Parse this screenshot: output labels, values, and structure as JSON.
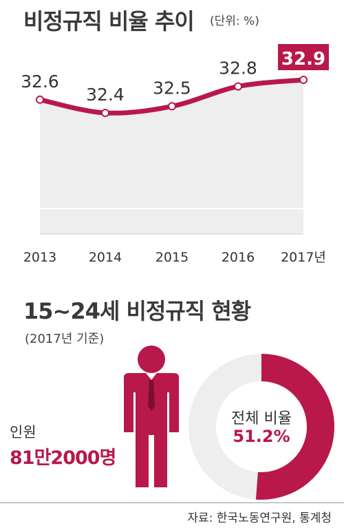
{
  "header": {
    "title": "비정규직 비율 추이",
    "unit": "(단위: %)"
  },
  "chart_data": {
    "type": "area",
    "categories": [
      "2013",
      "2014",
      "2015",
      "2016",
      "2017년"
    ],
    "values": [
      32.6,
      32.4,
      32.5,
      32.8,
      32.9
    ],
    "data_labels": [
      "32.6",
      "32.4",
      "32.5",
      "32.8",
      "32.9"
    ],
    "title": "비정규직 비율 추이",
    "xlabel": "",
    "ylabel": "",
    "highlight_index": 4,
    "colors": {
      "line": "#b8184a",
      "fill": "#eeeeee",
      "highlight": "#b8184a"
    }
  },
  "section2": {
    "title": "15~24세 비정규직 현황",
    "subtitle": "(2017년 기준)"
  },
  "people": {
    "label": "인원",
    "value": "81만2000명"
  },
  "ratio": {
    "label": "전체 비율",
    "value": "51.2%",
    "fraction": 0.512
  },
  "source": "자료: 한국노동연구원, 통계청",
  "colors": {
    "accent": "#b8184a",
    "gray": "#eeeeee"
  }
}
